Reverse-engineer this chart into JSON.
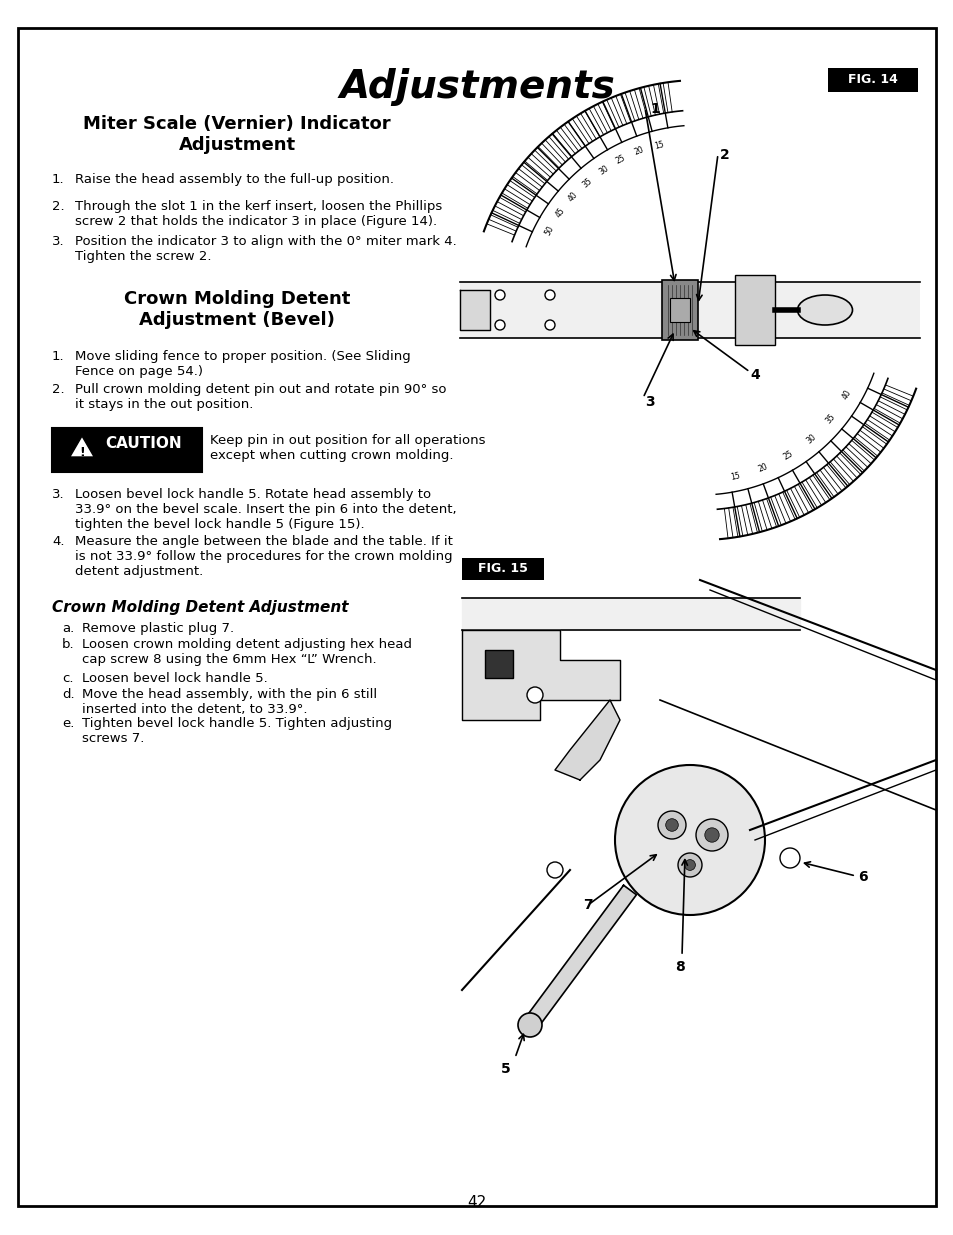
{
  "title": "Adjustments",
  "section1_title": "Miter Scale (Vernier) Indicator\nAdjustment",
  "section2_title": "Crown Molding Detent\nAdjustment (Bevel)",
  "section3_title": "Crown Molding Detent Adjustment",
  "page_number": "42",
  "fig14_label": "FIG. 14",
  "fig15_label": "FIG. 15",
  "s1_items": [
    [
      "1.",
      "Raise the head assembly to the full-up position."
    ],
    [
      "2.",
      "Through the slot 1 in the kerf insert, loosen the Phillips\nscrew 2 that holds the indicator 3 in place (Figure 14)."
    ],
    [
      "3.",
      "Position the indicator 3 to align with the 0° miter mark 4.\nTighten the screw 2."
    ]
  ],
  "s2_items": [
    [
      "1.",
      "Move sliding fence to proper position. (See Sliding\nFence on page 54.)"
    ],
    [
      "2.",
      "Pull crown molding detent pin out and rotate pin 90° so\nit stays in the out position."
    ]
  ],
  "caution_text": "Keep pin in out position for all operations\nexcept when cutting crown molding.",
  "s2c_items": [
    [
      "3.",
      "Loosen bevel lock handle 5. Rotate head assembly to\n33.9° on the bevel scale. Insert the pin 6 into the detent,\ntighten the bevel lock handle 5 (Figure 15)."
    ],
    [
      "4.",
      "Measure the angle between the blade and the table. If it\nis not 33.9° follow the procedures for the crown molding\ndetent adjustment."
    ]
  ],
  "s3_items": [
    [
      "a.",
      "Remove plastic plug 7."
    ],
    [
      "b.",
      "Loosen crown molding detent adjusting hex head\ncap screw 8 using the 6mm Hex “L” Wrench."
    ],
    [
      "c.",
      "Loosen bevel lock handle 5."
    ],
    [
      "d.",
      "Move the head assembly, with the pin 6 still\ninserted into the detent, to 33.9°."
    ],
    [
      "e.",
      "Tighten bevel lock handle 5. Tighten adjusting\nscrews 7."
    ]
  ]
}
